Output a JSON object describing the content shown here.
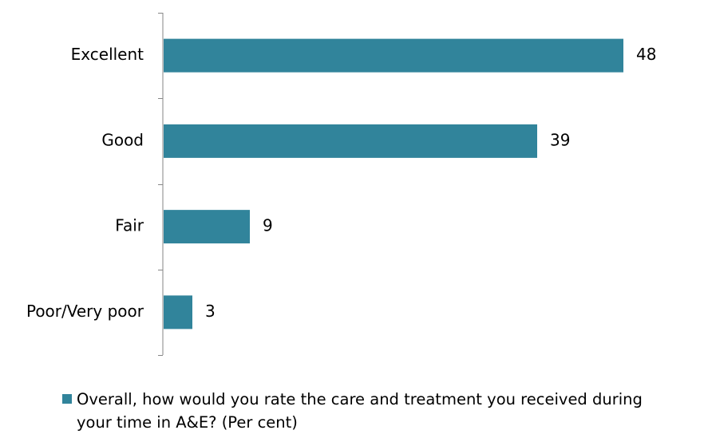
{
  "chart_data": {
    "type": "bar",
    "orientation": "horizontal",
    "categories": [
      "Excellent",
      "Good",
      "Fair",
      "Poor/Very poor"
    ],
    "series": [
      {
        "name": "Overall, how would you rate the care and treatment you received during your time in A&E? (Per cent)",
        "values": [
          48,
          39,
          9,
          3
        ],
        "color": "#31849B"
      }
    ],
    "data_labels": [
      "48",
      "39",
      "9",
      "3"
    ],
    "xlim": [
      0,
      50
    ],
    "grid": false,
    "legend_position": "bottom",
    "legend_lines": [
      "Overall, how would you rate the care and treatment you received during",
      "your time in A&E? (Per cent)"
    ]
  }
}
